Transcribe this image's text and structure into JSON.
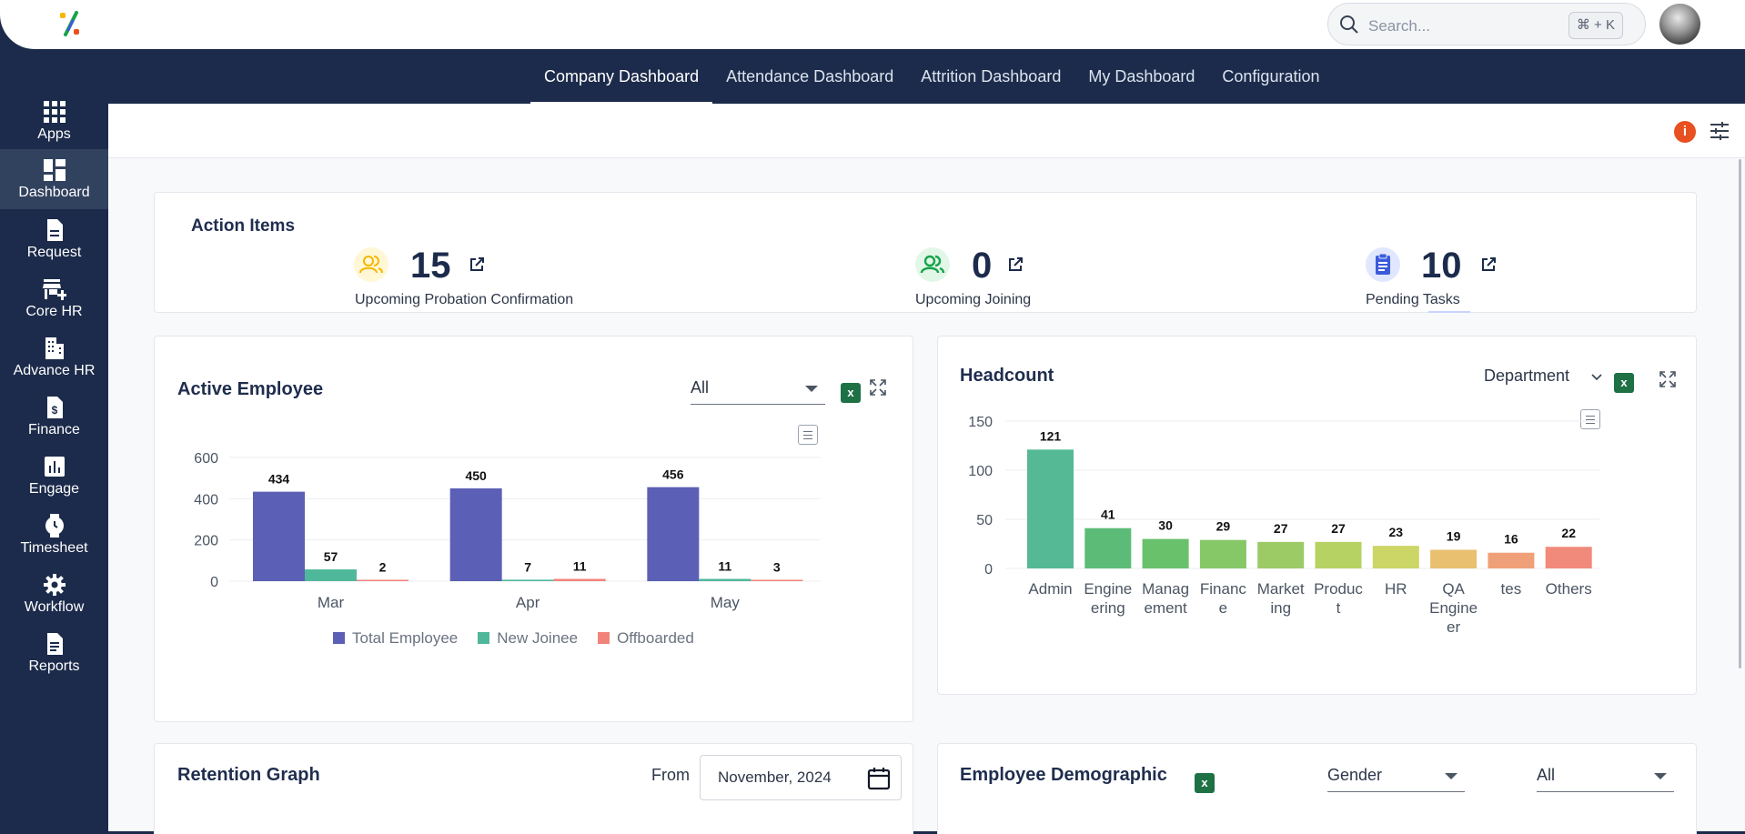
{
  "header": {
    "search_placeholder": "Search...",
    "search_shortcut": "⌘ + K"
  },
  "sidebar": {
    "items": [
      {
        "label": "Apps",
        "icon": "apps-grid-icon"
      },
      {
        "label": "Dashboard",
        "icon": "dashboard-icon",
        "active": true
      },
      {
        "label": "Request",
        "icon": "document-icon"
      },
      {
        "label": "Core HR",
        "icon": "store-plus-icon"
      },
      {
        "label": "Advance HR",
        "icon": "building-icon"
      },
      {
        "label": "Finance",
        "icon": "dollar-document-icon"
      },
      {
        "label": "Engage",
        "icon": "bar-chart-icon"
      },
      {
        "label": "Timesheet",
        "icon": "clock-icon"
      },
      {
        "label": "Workflow",
        "icon": "gear-icon"
      },
      {
        "label": "Reports",
        "icon": "report-icon"
      }
    ]
  },
  "tabs": [
    {
      "label": "Company Dashboard",
      "active": true
    },
    {
      "label": "Attendance Dashboard"
    },
    {
      "label": "Attrition Dashboard"
    },
    {
      "label": "My Dashboard"
    },
    {
      "label": "Configuration"
    }
  ],
  "toolbar": {
    "info_label": "i"
  },
  "action_items": {
    "title": "Action Items",
    "items": [
      {
        "count": "15",
        "label": "Upcoming Probation Confirmation",
        "icon": "users-icon",
        "color": "#f5b800"
      },
      {
        "count": "0",
        "label": "Upcoming Joining",
        "icon": "users-icon",
        "color": "#16a34a"
      },
      {
        "count": "10",
        "label": "Pending Tasks",
        "icon": "clipboard-icon",
        "color": "#3b5bdb"
      }
    ]
  },
  "active_employee": {
    "title": "Active Employee",
    "filter": "All",
    "excel_label": "x"
  },
  "headcount": {
    "title": "Headcount",
    "filter": "Department",
    "excel_label": "x"
  },
  "retention": {
    "title": "Retention Graph",
    "from_label": "From",
    "date_value": "November, 2024"
  },
  "demographic": {
    "title": "Employee Demographic",
    "filter_1": "Gender",
    "filter_2": "All",
    "excel_label": "x"
  },
  "chart_data": [
    {
      "type": "bar",
      "categories": [
        "Mar",
        "Apr",
        "May"
      ],
      "series": [
        {
          "name": "Total Employee",
          "values": [
            434,
            450,
            456
          ],
          "color": "#5b5fb5"
        },
        {
          "name": "New Joinee",
          "values": [
            57,
            7,
            11
          ],
          "color": "#4fb89a"
        },
        {
          "name": "Offboarded",
          "values": [
            2,
            11,
            3
          ],
          "color": "#f2837b"
        }
      ],
      "yticks": [
        "600",
        "400",
        "200",
        "0"
      ],
      "ylim": [
        0,
        600
      ],
      "grid": true,
      "legend": "bottom"
    },
    {
      "type": "bar",
      "categories": [
        "Admin",
        "Engineering",
        "Management",
        "Finance",
        "Marketing",
        "Product",
        "HR",
        "QA Engineer",
        "tes",
        "Others"
      ],
      "category_lines": [
        [
          "Admin"
        ],
        [
          "Engine",
          "ering"
        ],
        [
          "Manag",
          "ement"
        ],
        [
          "Financ",
          "e"
        ],
        [
          "Market",
          "ing"
        ],
        [
          "Produc",
          "t"
        ],
        [
          "HR"
        ],
        [
          "QA",
          "Engine",
          "er"
        ],
        [
          "tes"
        ],
        [
          "Others"
        ]
      ],
      "values": [
        121,
        41,
        30,
        29,
        27,
        27,
        23,
        19,
        16,
        22
      ],
      "colors": [
        "#55b996",
        "#5cbc77",
        "#69c16b",
        "#86c768",
        "#9ccb66",
        "#b6d263",
        "#ccd666",
        "#e8c070",
        "#f0a078",
        "#f18a7a"
      ],
      "yticks": [
        "150",
        "100",
        "50",
        "0"
      ],
      "ylim": [
        0,
        150
      ],
      "grid": true
    }
  ]
}
